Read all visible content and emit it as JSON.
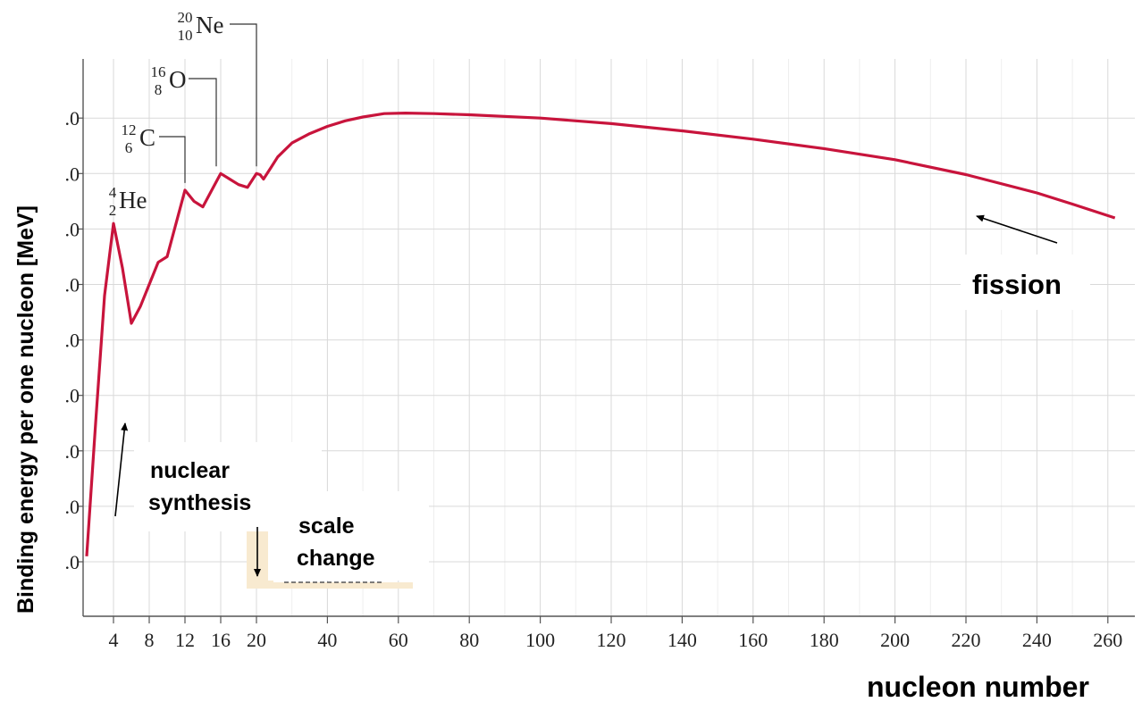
{
  "chart_data": {
    "type": "line",
    "xlabel": "nucleon number",
    "ylabel": "Binding energy per one nucleon [MeV]",
    "x_ticks": [
      "4",
      "8",
      "12",
      "16",
      "20",
      "40",
      "60",
      "80",
      "100",
      "120",
      "140",
      "160",
      "180",
      "200",
      "220",
      "240",
      "260"
    ],
    "y_ticks": [
      ".0",
      ".0",
      ".0",
      ".0",
      ".0",
      ".0",
      ".0",
      ".0",
      ".0"
    ],
    "ylim": [
      0,
      9.5
    ],
    "grid": true,
    "series": [
      {
        "color": "#c8143c",
        "points": [
          {
            "x": 1,
            "y": 1.1
          },
          {
            "x": 2,
            "y": 3.5
          },
          {
            "x": 3,
            "y": 5.8
          },
          {
            "x": 4,
            "y": 7.1
          },
          {
            "x": 5,
            "y": 6.3
          },
          {
            "x": 6,
            "y": 5.3
          },
          {
            "x": 7,
            "y": 5.6
          },
          {
            "x": 8,
            "y": 6.0
          },
          {
            "x": 9,
            "y": 6.4
          },
          {
            "x": 10,
            "y": 6.5
          },
          {
            "x": 11,
            "y": 7.1
          },
          {
            "x": 12,
            "y": 7.7
          },
          {
            "x": 13,
            "y": 7.5
          },
          {
            "x": 14,
            "y": 7.4
          },
          {
            "x": 15,
            "y": 7.7
          },
          {
            "x": 16,
            "y": 8.0
          },
          {
            "x": 17,
            "y": 7.9
          },
          {
            "x": 18,
            "y": 7.8
          },
          {
            "x": 19,
            "y": 7.75
          },
          {
            "x": 20,
            "y": 8.0
          },
          {
            "x": 21,
            "y": 7.98
          },
          {
            "x": 22,
            "y": 7.9
          },
          {
            "x": 24,
            "y": 8.1
          },
          {
            "x": 26,
            "y": 8.3
          },
          {
            "x": 30,
            "y": 8.55
          },
          {
            "x": 35,
            "y": 8.72
          },
          {
            "x": 40,
            "y": 8.85
          },
          {
            "x": 45,
            "y": 8.95
          },
          {
            "x": 50,
            "y": 9.02
          },
          {
            "x": 56,
            "y": 9.08
          },
          {
            "x": 62,
            "y": 9.09
          },
          {
            "x": 70,
            "y": 9.08
          },
          {
            "x": 80,
            "y": 9.06
          },
          {
            "x": 100,
            "y": 9.0
          },
          {
            "x": 120,
            "y": 8.9
          },
          {
            "x": 140,
            "y": 8.77
          },
          {
            "x": 160,
            "y": 8.62
          },
          {
            "x": 180,
            "y": 8.45
          },
          {
            "x": 200,
            "y": 8.25
          },
          {
            "x": 220,
            "y": 7.98
          },
          {
            "x": 240,
            "y": 7.65
          },
          {
            "x": 250,
            "y": 7.45
          },
          {
            "x": 262,
            "y": 7.2
          }
        ]
      }
    ],
    "isotopes": [
      {
        "symbol": "He",
        "mass": "4",
        "atomic": "2",
        "x": 4,
        "y": 7.1
      },
      {
        "symbol": "C",
        "mass": "12",
        "atomic": "6",
        "x": 12,
        "y": 7.7
      },
      {
        "symbol": "O",
        "mass": "16",
        "atomic": "8",
        "x": 16,
        "y": 8.0
      },
      {
        "symbol": "Ne",
        "mass": "20",
        "atomic": "10",
        "x": 20,
        "y": 8.0
      }
    ],
    "annotations": {
      "fission": "fission",
      "nuclear_synthesis": [
        "nuclear",
        "synthesis"
      ],
      "scale_change": [
        "scale",
        "change"
      ]
    }
  }
}
